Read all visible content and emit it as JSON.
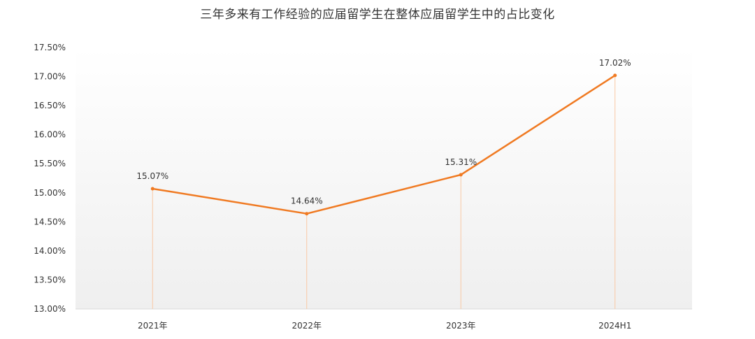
{
  "chart_data": {
    "type": "line",
    "title": "三年多来有工作经验的应届留学生在整体应届留学生中的占比变化",
    "categories": [
      "2021年",
      "2022年",
      "2023年",
      "2024H1"
    ],
    "series": [
      {
        "values": [
          15.07,
          14.64,
          15.31,
          17.02
        ],
        "labels": [
          "15.07%",
          "14.64%",
          "15.31%",
          "17.02%"
        ],
        "color": "#f07a22"
      }
    ],
    "ylim": [
      13.0,
      17.5
    ],
    "yticks": [
      "13.00%",
      "13.50%",
      "14.00%",
      "14.50%",
      "15.00%",
      "15.50%",
      "16.00%",
      "16.50%",
      "17.00%",
      "17.50%"
    ],
    "ytick_values": [
      13.0,
      13.5,
      14.0,
      14.5,
      15.0,
      15.5,
      16.0,
      16.5,
      17.0,
      17.5
    ],
    "xlabel": "",
    "ylabel": "",
    "grid": false,
    "legend": "none",
    "drop_line_color": "#f9c8a4",
    "plot_background": [
      "#ffffff",
      "#efefef"
    ]
  }
}
